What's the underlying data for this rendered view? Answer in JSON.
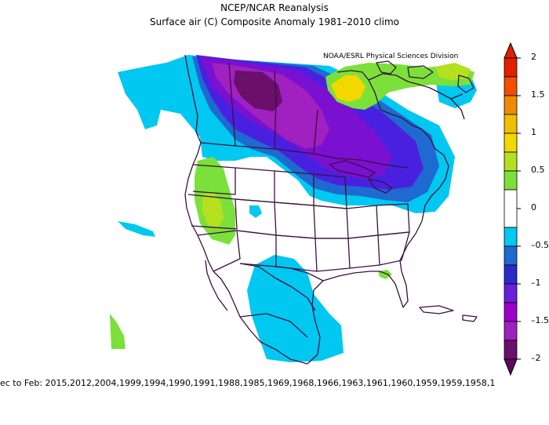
{
  "header": {
    "title": "NCEP/NCAR Reanalysis",
    "subtitle": "Surface air (C) Composite Anomaly 1981–2010 climo",
    "credit": "NOAA/ESRL Physical Sciences Division"
  },
  "colors": {
    "dark_purple": "#6a0f6a",
    "purple": "#9b00c8",
    "magenta_purple": "#a020c0",
    "violet": "#6a20d8",
    "blue": "#2a2ac8",
    "mid_blue": "#1e6ad0",
    "light_blue": "#00c8f0",
    "white": "#ffffff",
    "light_green": "#7ce03a",
    "yellow_green": "#b4e020",
    "yellow": "#f0d800",
    "orange": "#f08a00",
    "red": "#e02000",
    "outline": "#3a1040"
  },
  "colorbar": {
    "labels": [
      "2",
      "1.5",
      "1",
      "0.5",
      "0",
      "–0.5",
      "–1",
      "–1.5",
      "–2"
    ]
  },
  "footer": {
    "text": "ec to Feb: 2015,2012,2004,1999,1994,1990,1991,1988,1985,1969,1968,1966,1963,1961,1960,1959,1959,1958,1"
  }
}
